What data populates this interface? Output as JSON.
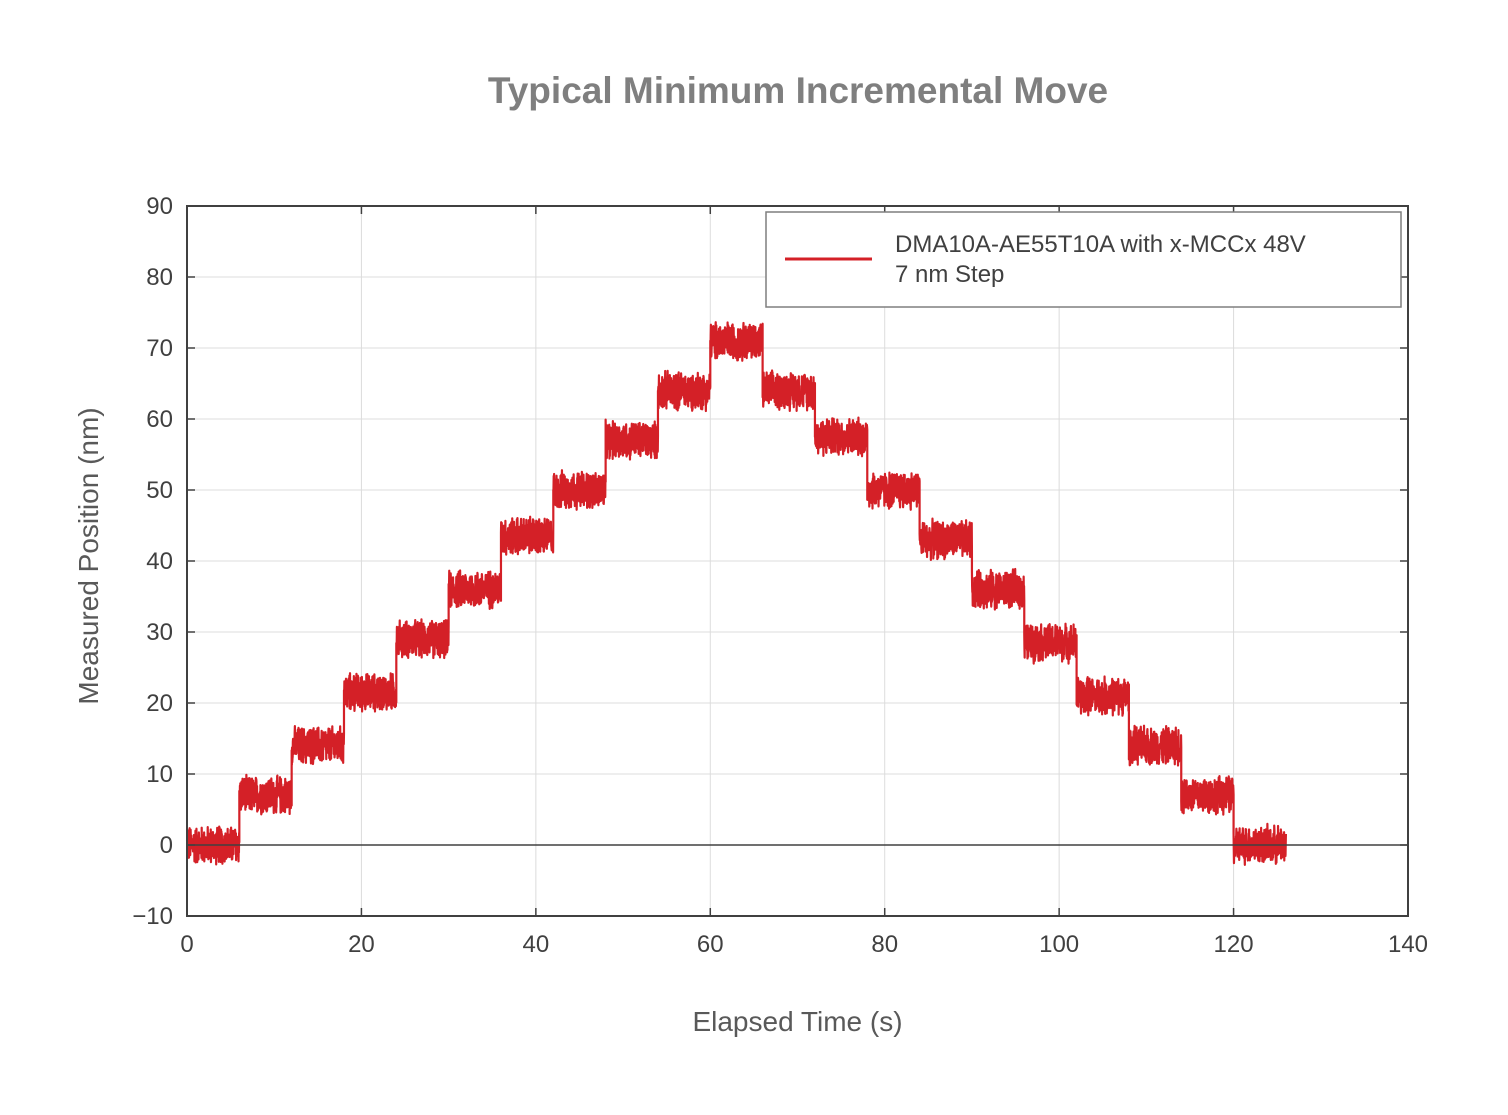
{
  "chart_data": {
    "type": "line",
    "title": "Typical Minimum Incremental Move",
    "xlabel": "Elapsed Time (s)",
    "ylabel": "Measured Position (nm)",
    "xlim": [
      0,
      140
    ],
    "ylim": [
      -10,
      90
    ],
    "xticks": [
      0,
      20,
      40,
      60,
      80,
      100,
      120,
      140
    ],
    "yticks": [
      -10,
      0,
      10,
      20,
      30,
      40,
      50,
      60,
      70,
      80,
      90
    ],
    "ytick_labels": [
      "−10",
      "0",
      "10",
      "20",
      "30",
      "40",
      "50",
      "60",
      "70",
      "80",
      "90"
    ],
    "grid": true,
    "legend_position": "top-right",
    "series": [
      {
        "name": "DMA10A-AE55T10A with x-MCCx 48V\n7 nm Step",
        "legend_lines": [
          "DMA10A-AE55T10A with x-MCCx 48V",
          "7 nm Step"
        ],
        "color": "#d42027",
        "noise_amplitude_nm": 3,
        "step_duration_s": 6,
        "steps": [
          {
            "t_start": 0,
            "t_end": 6,
            "level": 0
          },
          {
            "t_start": 6,
            "t_end": 12,
            "level": 7
          },
          {
            "t_start": 12,
            "t_end": 18,
            "level": 14
          },
          {
            "t_start": 18,
            "t_end": 24,
            "level": 21.5
          },
          {
            "t_start": 24,
            "t_end": 30,
            "level": 29
          },
          {
            "t_start": 30,
            "t_end": 36,
            "level": 36
          },
          {
            "t_start": 36,
            "t_end": 42,
            "level": 43.5
          },
          {
            "t_start": 42,
            "t_end": 48,
            "level": 50
          },
          {
            "t_start": 48,
            "t_end": 54,
            "level": 57
          },
          {
            "t_start": 54,
            "t_end": 60,
            "level": 64
          },
          {
            "t_start": 60,
            "t_end": 66,
            "level": 71
          },
          {
            "t_start": 66,
            "t_end": 72,
            "level": 64
          },
          {
            "t_start": 72,
            "t_end": 78,
            "level": 57.5
          },
          {
            "t_start": 78,
            "t_end": 84,
            "level": 50
          },
          {
            "t_start": 84,
            "t_end": 90,
            "level": 43
          },
          {
            "t_start": 90,
            "t_end": 96,
            "level": 36
          },
          {
            "t_start": 96,
            "t_end": 102,
            "level": 28.5
          },
          {
            "t_start": 102,
            "t_end": 108,
            "level": 21
          },
          {
            "t_start": 108,
            "t_end": 114,
            "level": 14
          },
          {
            "t_start": 114,
            "t_end": 120,
            "level": 7
          },
          {
            "t_start": 120,
            "t_end": 126,
            "level": 0
          }
        ]
      }
    ]
  }
}
